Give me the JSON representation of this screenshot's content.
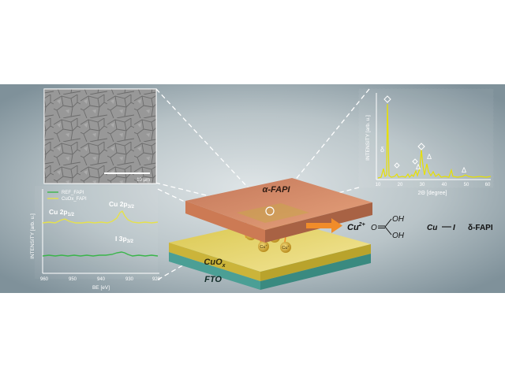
{
  "sem_panel": {
    "scale_label": "10 µm"
  },
  "xps_panel": {
    "legend": [
      "REF_FAPI",
      "CuOx_FAPI"
    ],
    "y_label": "INTENSITY [arb. u.]",
    "x_label": "BE [eV]",
    "x_ticks": [
      "960",
      "950",
      "940",
      "930",
      "920"
    ],
    "peak_cu_2p12": {
      "main": "Cu 2p",
      "sub": "1/2"
    },
    "peak_cu_2p32": {
      "main": "Cu 2p",
      "sub": "3/2"
    },
    "peak_i_3p32": {
      "main": "I 3p",
      "sub": "3/2"
    }
  },
  "xrd_panel": {
    "y_label": "INTENSITY [arb. u.]",
    "x_label": "2Θ [degree]",
    "x_ticks": [
      "10",
      "20",
      "30",
      "40",
      "50",
      "60"
    ],
    "delta_symbol": "δ",
    "triangle_symbol": "Δ"
  },
  "stack": {
    "top_layer": "α-FAPI",
    "mid_layer": {
      "main": "CuO",
      "sub": "x"
    },
    "bottom_layer": "FTO",
    "ion_label": "Cu",
    "ion_sup": "+"
  },
  "chemistry": {
    "cu2_main": "Cu",
    "cu2_sup": "2+",
    "acid_O": "O",
    "acid_OH1": "OH",
    "acid_OH2": "OH",
    "cu_i_cu": "Cu",
    "cu_i_i": "I",
    "product": "δ-FAPI"
  },
  "colors": {
    "background_center": "#d4dbdd",
    "background_edge": "#8798a0",
    "perovskite": "#d9906a",
    "cuox": "#e9db6d",
    "fto": "#63b6ac",
    "arrow": "#f08c2a",
    "ref_line": "#3ab54a",
    "cuox_line": "#e6e14c",
    "xrd_line": "#e8e000"
  }
}
